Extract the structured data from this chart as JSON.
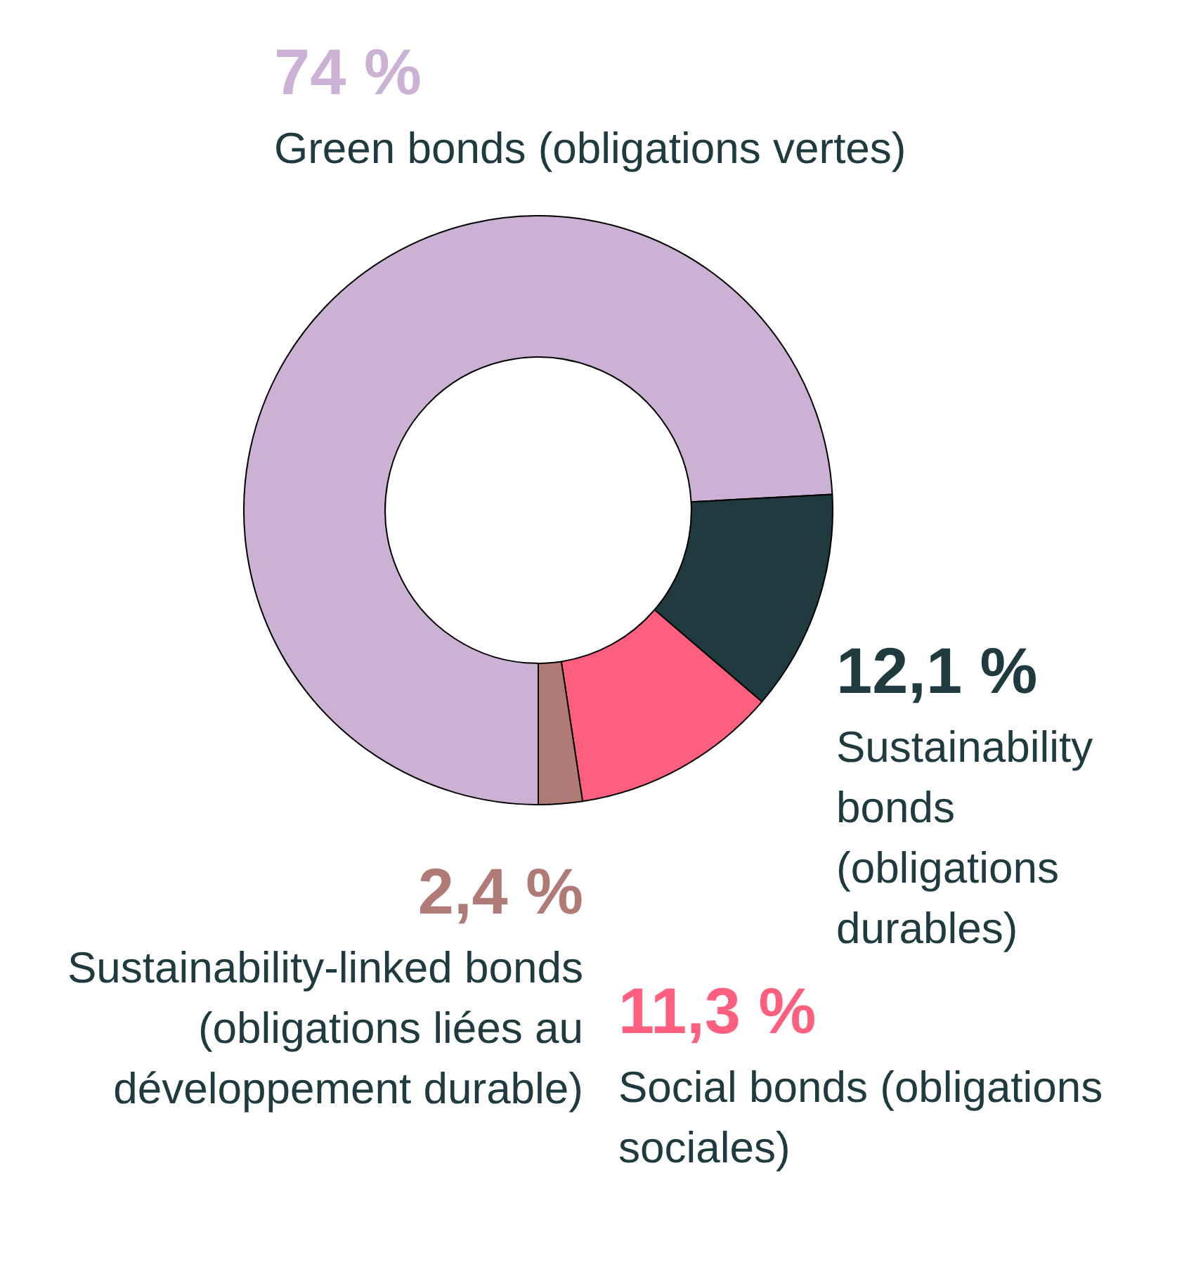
{
  "chart_data": {
    "type": "donut",
    "categories": [
      "Green bonds (obligations vertes)",
      "Sustainability bonds (obligations durables)",
      "Social bonds (obligations sociales)",
      "Sustainability-linked bonds (obligations liées au développement durable)"
    ],
    "values": [
      74,
      12.1,
      11.3,
      2.4
    ],
    "colors": [
      "#cbb2d4",
      "#203b40",
      "#ff5f7e",
      "#b07a76"
    ],
    "value_labels": [
      "74 %",
      "12,1 %",
      "11,3 %",
      "2,4 %"
    ]
  }
}
